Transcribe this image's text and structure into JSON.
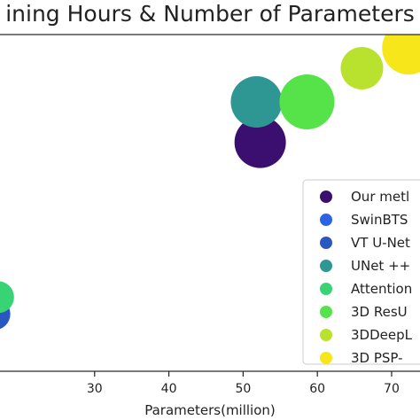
{
  "chart_data": {
    "type": "scatter",
    "title": "ining Hours & Number of Parameters",
    "xlabel": "Parameters(million)",
    "ylabel": "",
    "xlim": [
      16.9,
      74.3
    ],
    "ylim": [
      0,
      100
    ],
    "x_ticks": [
      30,
      40,
      50,
      60,
      70
    ],
    "grid": false,
    "legend_position": "bottom-right",
    "points": [
      {
        "label": "Our metl",
        "x": 52.3,
        "y": 68,
        "size": 29,
        "color": "#3b0f6f"
      },
      {
        "label": "SwinBTS",
        "x": 15.5,
        "y": 17,
        "size": 18,
        "color": "#2d62e6"
      },
      {
        "label": "VT U-Net",
        "x": 16.5,
        "y": 17,
        "size": 18,
        "color": "#2a57c2"
      },
      {
        "label": "UNet ++",
        "x": 51.8,
        "y": 80,
        "size": 29,
        "color": "#2e9793"
      },
      {
        "label": "Attention",
        "x": 17.0,
        "y": 22,
        "size": 18,
        "color": "#38d375"
      },
      {
        "label": "3D ResU",
        "x": 58.6,
        "y": 80,
        "size": 31,
        "color": "#56e34a"
      },
      {
        "label": "3DDeepL",
        "x": 66.0,
        "y": 90,
        "size": 24,
        "color": "#b8e22e"
      },
      {
        "label": "3D PSP-",
        "x": 72.3,
        "y": 96,
        "size": 30,
        "color": "#f7e61a"
      }
    ]
  }
}
